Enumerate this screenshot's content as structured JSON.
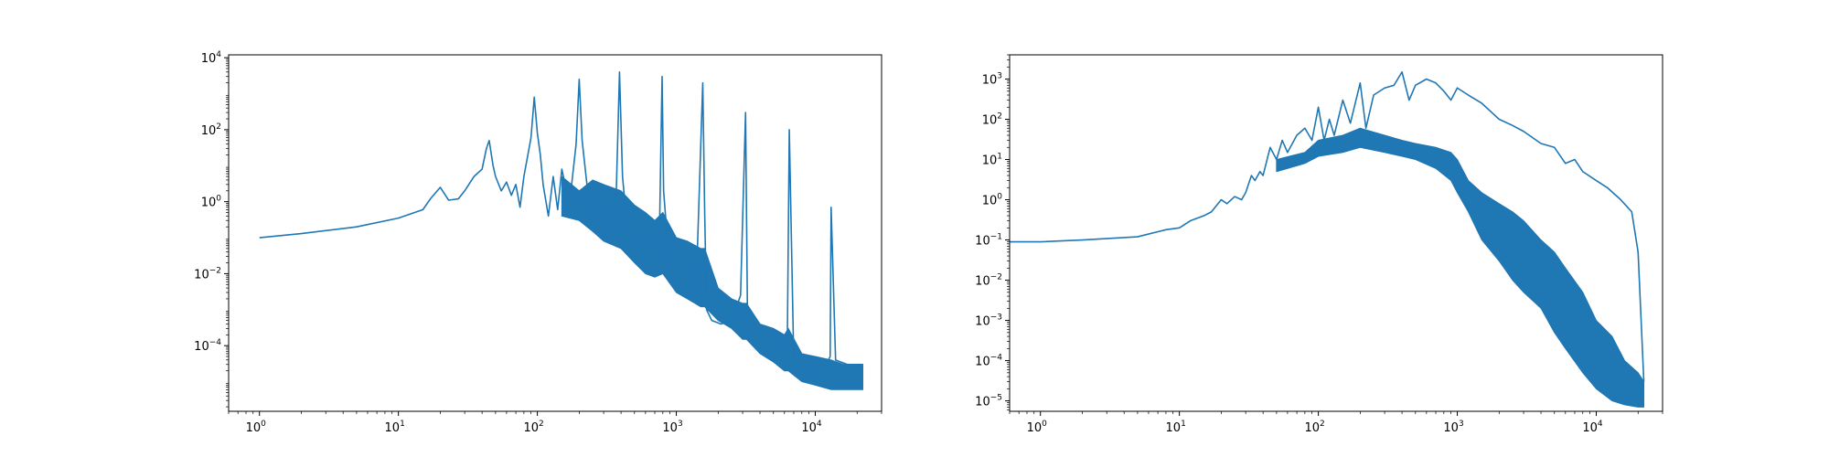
{
  "figure": {
    "background": "#ffffff",
    "line_color": "#1f77b4"
  },
  "chart_data": [
    {
      "type": "line",
      "title": "",
      "xlabel": "",
      "ylabel": "",
      "xscale": "log",
      "yscale": "log",
      "xlim": [
        0.6,
        30000
      ],
      "ylim": [
        1.5e-06,
        12000
      ],
      "grid": false,
      "legend": "none",
      "xtick_labels": [
        {
          "base": "10",
          "exp": "0",
          "value": 1
        },
        {
          "base": "10",
          "exp": "1",
          "value": 10
        },
        {
          "base": "10",
          "exp": "2",
          "value": 100
        },
        {
          "base": "10",
          "exp": "3",
          "value": 1000
        },
        {
          "base": "10",
          "exp": "4",
          "value": 10000
        }
      ],
      "ytick_labels": [
        {
          "base": "10",
          "exp": "4",
          "value": 10000
        },
        {
          "base": "10",
          "exp": "2",
          "value": 100
        },
        {
          "base": "10",
          "exp": "0",
          "value": 1
        },
        {
          "base": "10",
          "exp": "−2",
          "value": 0.01
        },
        {
          "base": "10",
          "exp": "−4",
          "value": 0.0001
        }
      ],
      "series": [
        {
          "values": {
            "x": [
              1,
              2,
              5,
              10,
              15,
              17,
              20,
              23,
              27,
              30,
              35,
              40,
              43,
              45,
              48,
              50,
              55,
              60,
              65,
              70,
              75,
              80,
              90,
              95,
              100,
              105,
              110,
              120,
              130,
              140,
              150,
              170,
              190,
              200,
              210,
              230,
              260,
              300,
              340,
              370,
              390,
              410,
              450,
              500,
              560,
              620,
              700,
              760,
              790,
              810,
              900,
              1000,
              1200,
              1400,
              1550,
              1600,
              1650,
              1800,
              2100,
              2500,
              2900,
              3150,
              3250,
              3500,
              4000,
              5000,
              6000,
              6300,
              6500,
              7000,
              8000,
              10000,
              12000,
              12800,
              13000,
              14000,
              17000,
              22000
            ],
            "y": [
              0.1,
              0.13,
              0.2,
              0.35,
              0.6,
              1.2,
              2.5,
              1.1,
              1.2,
              2.0,
              5,
              8,
              30,
              50,
              10,
              5,
              2,
              3.5,
              1.5,
              3.0,
              0.7,
              5,
              60,
              800,
              80,
              20,
              3,
              0.4,
              5,
              0.6,
              8,
              0.8,
              40,
              2500,
              50,
              2,
              0.3,
              0.2,
              0.25,
              2,
              4000,
              5,
              0.1,
              0.05,
              0.03,
              0.05,
              0.1,
              0.4,
              3000,
              2,
              0.01,
              0.005,
              0.003,
              0.01,
              2000,
              0.5,
              0.001,
              0.0005,
              0.0004,
              0.0005,
              0.0025,
              300,
              0.0008,
              0.0002,
              8e-05,
              5e-05,
              5e-05,
              0.0002,
              100,
              4e-05,
              3e-05,
              2.5e-05,
              3e-05,
              5e-05,
              0.7,
              4e-05,
              3e-05,
              3e-05
            ],
            "y_lower": [
              1,
              2,
              5,
              10,
              15,
              17,
              20,
              23,
              27,
              30,
              35,
              40,
              43,
              45,
              48,
              50,
              55,
              60,
              65,
              70,
              75,
              80,
              90,
              95,
              100,
              105,
              110,
              120,
              130,
              140,
              150,
              170,
              190,
              200,
              210,
              230,
              260,
              300,
              340,
              370,
              390,
              410,
              450,
              500,
              560,
              620,
              700,
              760,
              790,
              810,
              900,
              1000,
              1200,
              1400,
              1550,
              1600,
              1650,
              1800,
              2100,
              2500,
              2900,
              3150,
              3250,
              3500,
              4000,
              5000,
              6000,
              6300,
              6500,
              7000,
              8000,
              10000,
              12000,
              12800,
              13000,
              14000,
              17000,
              22000
            ]
          },
          "band": {
            "x": [
              150,
              200,
              250,
              300,
              400,
              500,
              600,
              700,
              800,
              1000,
              1200,
              1500,
              1600,
              2000,
              2500,
              3000,
              3200,
              4000,
              5000,
              6000,
              6400,
              8000,
              10000,
              13000,
              16000,
              22000
            ],
            "upper": [
              5,
              2,
              4,
              3,
              2,
              0.8,
              0.5,
              0.3,
              0.5,
              0.1,
              0.08,
              0.05,
              0.05,
              0.004,
              0.002,
              0.0015,
              0.0015,
              0.0004,
              0.0003,
              0.0002,
              0.0003,
              6e-05,
              5e-05,
              4e-05,
              3e-05,
              3e-05
            ],
            "lower": [
              0.4,
              0.3,
              0.15,
              0.08,
              0.05,
              0.02,
              0.01,
              0.008,
              0.01,
              0.003,
              0.002,
              0.0012,
              0.0012,
              0.0005,
              0.0003,
              0.00015,
              0.00015,
              6e-05,
              3.5e-05,
              2e-05,
              2e-05,
              1e-05,
              8e-06,
              6e-06,
              6e-06,
              6e-06
            ]
          }
        }
      ]
    },
    {
      "type": "line",
      "title": "",
      "xlabel": "",
      "ylabel": "",
      "xscale": "log",
      "yscale": "log",
      "xlim": [
        0.6,
        30000
      ],
      "ylim": [
        5.5e-06,
        4000
      ],
      "grid": false,
      "legend": "none",
      "xtick_labels": [
        {
          "base": "10",
          "exp": "0",
          "value": 1
        },
        {
          "base": "10",
          "exp": "1",
          "value": 10
        },
        {
          "base": "10",
          "exp": "2",
          "value": 100
        },
        {
          "base": "10",
          "exp": "3",
          "value": 1000
        },
        {
          "base": "10",
          "exp": "4",
          "value": 10000
        }
      ],
      "ytick_labels": [
        {
          "base": "10",
          "exp": "3",
          "value": 1000
        },
        {
          "base": "10",
          "exp": "2",
          "value": 100
        },
        {
          "base": "10",
          "exp": "1",
          "value": 10
        },
        {
          "base": "10",
          "exp": "0",
          "value": 1
        },
        {
          "base": "10",
          "exp": "−1",
          "value": 0.1
        },
        {
          "base": "10",
          "exp": "−2",
          "value": 0.01
        },
        {
          "base": "10",
          "exp": "−3",
          "value": 0.001
        },
        {
          "base": "10",
          "exp": "−4",
          "value": 0.0001
        },
        {
          "base": "10",
          "exp": "−5",
          "value": 1e-05
        }
      ],
      "series": [
        {
          "values": {
            "x": [
              0.6,
              1,
              2,
              5,
              8,
              10,
              12,
              15,
              17,
              20,
              22,
              25,
              28,
              30,
              33,
              35,
              38,
              40,
              45,
              50,
              55,
              60,
              70,
              80,
              90,
              100,
              110,
              120,
              130,
              150,
              170,
              200,
              220,
              250,
              300,
              350,
              400,
              450,
              500,
              600,
              700,
              800,
              900,
              1000,
              1200,
              1500,
              2000,
              2500,
              3000,
              4000,
              5000,
              6000,
              7000,
              8000,
              10000,
              12000,
              15000,
              18000,
              20000,
              22000
            ],
            "y": [
              0.09,
              0.09,
              0.1,
              0.12,
              0.18,
              0.2,
              0.3,
              0.4,
              0.5,
              1.0,
              0.8,
              1.2,
              1.0,
              1.5,
              4,
              3,
              5,
              4,
              20,
              10,
              30,
              15,
              40,
              60,
              30,
              200,
              30,
              100,
              40,
              300,
              80,
              800,
              60,
              400,
              600,
              700,
              1500,
              300,
              700,
              1000,
              800,
              500,
              300,
              600,
              400,
              250,
              100,
              70,
              50,
              25,
              20,
              8,
              10,
              5,
              3,
              2,
              1,
              0.5,
              0.05,
              3e-05
            ],
            "y_lower": [
              0.6,
              1,
              2,
              5,
              8,
              10,
              12,
              15,
              17,
              20,
              22,
              25,
              28,
              30,
              33,
              35,
              38,
              40,
              45,
              50,
              55,
              60,
              70,
              80,
              90,
              100,
              110,
              120,
              130,
              150,
              170,
              200,
              220,
              250,
              300,
              350,
              400,
              450,
              500,
              600,
              700,
              800,
              900,
              1000,
              1200,
              1500,
              2000,
              2500,
              3000,
              4000,
              5000,
              6000,
              7000,
              8000,
              10000,
              12000,
              15000,
              18000,
              20000,
              22000
            ]
          },
          "band": {
            "x": [
              50,
              80,
              100,
              150,
              200,
              300,
              400,
              500,
              700,
              900,
              1000,
              1200,
              1500,
              2000,
              2500,
              3000,
              4000,
              5000,
              6000,
              8000,
              10000,
              13000,
              16000,
              20000,
              22000
            ],
            "upper": [
              10,
              15,
              30,
              40,
              60,
              40,
              30,
              25,
              20,
              15,
              10,
              3,
              1.5,
              0.8,
              0.5,
              0.3,
              0.1,
              0.05,
              0.02,
              0.005,
              0.001,
              0.0004,
              0.0001,
              5e-05,
              3e-05
            ],
            "lower": [
              5,
              8,
              12,
              15,
              20,
              15,
              12,
              10,
              6,
              3,
              1.5,
              0.5,
              0.1,
              0.03,
              0.01,
              0.005,
              0.002,
              0.0005,
              0.0002,
              5e-05,
              2e-05,
              1e-05,
              8e-06,
              7e-06,
              7e-06
            ]
          }
        }
      ]
    }
  ]
}
